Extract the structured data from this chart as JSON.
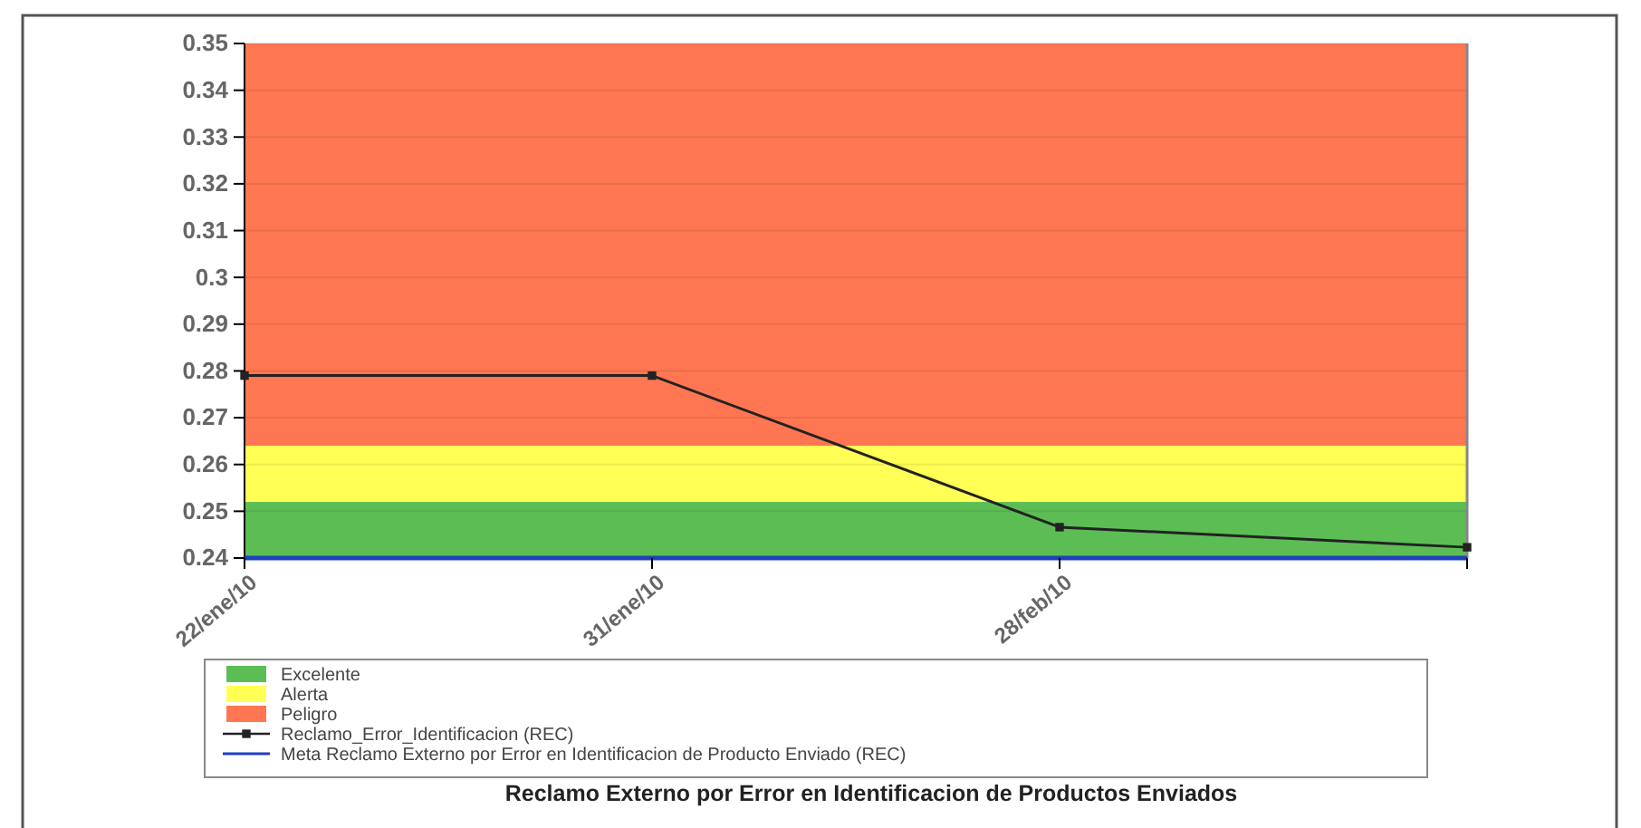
{
  "chart_data": {
    "type": "line",
    "title": "Reclamo Externo por Error en Identificacion de Productos Enviados",
    "categories": [
      "22/ene/10",
      "31/ene/10",
      "28/feb/10",
      null
    ],
    "series": [
      {
        "name": "Reclamo_Error_Identificacion (REC)",
        "color": "#222222",
        "values": [
          0.279,
          0.279,
          0.2466,
          0.2423
        ]
      }
    ],
    "ylim": [
      0.24,
      0.35
    ],
    "yticks": [
      0.24,
      0.25,
      0.26,
      0.27,
      0.28,
      0.29,
      0.3,
      0.31,
      0.32,
      0.33,
      0.34,
      0.35
    ],
    "bands": [
      {
        "axis": "y",
        "from": 0.24,
        "to": 0.252,
        "label": "Excelente",
        "color": "#5cbd55"
      },
      {
        "axis": "y",
        "from": 0.252,
        "to": 0.264,
        "label": "Alerta",
        "color": "#ffff55"
      },
      {
        "axis": "y",
        "from": 0.264,
        "to": 0.35,
        "label": "Peligro",
        "color": "#ff7752"
      }
    ],
    "ref_lines": [
      {
        "axis": "y",
        "value": 0.24,
        "label": "Meta Reclamo Externo por Error en Identificacion de Producto  Enviado (REC)",
        "color": "#1f3fbf",
        "line_style": "solid"
      }
    ],
    "grid": "y",
    "legend": "bottom",
    "marker": "square",
    "line_style": "solid"
  }
}
